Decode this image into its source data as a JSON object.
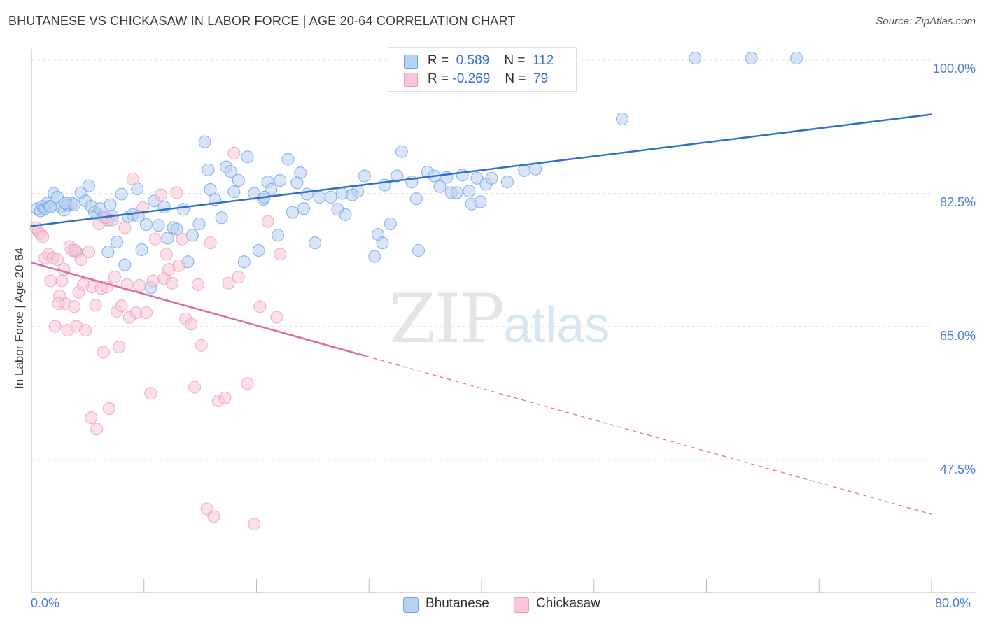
{
  "title": "BHUTANESE VS CHICKASAW IN LABOR FORCE | AGE 20-64 CORRELATION CHART",
  "source": {
    "prefix": "Source:",
    "name": "ZipAtlas.com"
  },
  "watermark": {
    "part1": "ZIP",
    "part2": "atlas"
  },
  "legend": {
    "rows": [
      {
        "r_label": "R =",
        "r_value": "0.589",
        "n_label": "N =",
        "n_value": "112"
      },
      {
        "r_label": "R =",
        "r_value": "-0.269",
        "n_label": "N =",
        "n_value": "79"
      }
    ]
  },
  "colors": {
    "blue": "#6fa3e8",
    "blue_fill": "#b8d0f4",
    "blue_line": "#2f6fce",
    "pink": "#ee9bb8",
    "pink_fill": "#f8c6d8",
    "pink_line": "#e06a96",
    "tick_text": "#4a7fd0",
    "grid": "#e3e3e3"
  },
  "chart_data": {
    "type": "scatter",
    "title": "BHUTANESE VS CHICKASAW IN LABOR FORCE | AGE 20-64 CORRELATION CHART",
    "xlabel": "",
    "ylabel": "In Labor Force | Age 20-64",
    "xlim": [
      0,
      80
    ],
    "ylim": [
      30,
      101.5
    ],
    "x_tick_labels": [
      "0.0%",
      "80.0%"
    ],
    "y_ticks": [
      47.5,
      65.0,
      82.5,
      100.0
    ],
    "y_tick_labels": [
      "47.5%",
      "65.0%",
      "82.5%",
      "100.0%"
    ],
    "grid": true,
    "legend_position": "top-center",
    "series": [
      {
        "name": "Bhutanese",
        "r": 0.589,
        "n": 112,
        "trend": {
          "x": [
            0,
            80
          ],
          "y": [
            78.2,
            92.9
          ],
          "dashed_from": null
        },
        "points": [
          [
            0.5,
            80.5
          ],
          [
            0.8,
            80.2
          ],
          [
            1.0,
            80.8
          ],
          [
            1.2,
            80.5
          ],
          [
            1.4,
            81.2
          ],
          [
            1.6,
            80.8
          ],
          [
            2.0,
            82.5
          ],
          [
            2.3,
            82.0
          ],
          [
            2.6,
            80.7
          ],
          [
            2.9,
            80.3
          ],
          [
            3.2,
            81.0
          ],
          [
            3.6,
            81.2
          ],
          [
            3.8,
            81.0
          ],
          [
            4.0,
            74.8
          ],
          [
            4.4,
            82.6
          ],
          [
            4.8,
            81.5
          ],
          [
            5.1,
            83.5
          ],
          [
            5.3,
            80.8
          ],
          [
            5.6,
            80.0
          ],
          [
            5.9,
            79.8
          ],
          [
            6.1,
            80.5
          ],
          [
            6.4,
            79.4
          ],
          [
            6.8,
            74.8
          ],
          [
            7.0,
            81.0
          ],
          [
            7.2,
            79.5
          ],
          [
            7.6,
            76.1
          ],
          [
            8.0,
            82.4
          ],
          [
            8.3,
            73.1
          ],
          [
            8.6,
            79.4
          ],
          [
            9.0,
            79.7
          ],
          [
            9.4,
            83.1
          ],
          [
            9.8,
            75.1
          ],
          [
            10.2,
            78.4
          ],
          [
            10.6,
            70.1
          ],
          [
            10.9,
            81.5
          ],
          [
            11.3,
            78.3
          ],
          [
            11.8,
            80.7
          ],
          [
            12.1,
            76.6
          ],
          [
            12.6,
            78.0
          ],
          [
            12.9,
            77.8
          ],
          [
            13.5,
            80.4
          ],
          [
            13.9,
            73.5
          ],
          [
            14.3,
            77.0
          ],
          [
            14.9,
            78.5
          ],
          [
            15.4,
            89.3
          ],
          [
            15.7,
            85.6
          ],
          [
            15.9,
            83.0
          ],
          [
            16.3,
            81.7
          ],
          [
            16.9,
            79.3
          ],
          [
            17.3,
            86.0
          ],
          [
            17.7,
            85.4
          ],
          [
            18.0,
            82.7
          ],
          [
            18.4,
            84.2
          ],
          [
            18.9,
            73.5
          ],
          [
            19.2,
            87.3
          ],
          [
            19.8,
            82.5
          ],
          [
            20.2,
            75.0
          ],
          [
            20.6,
            81.7
          ],
          [
            21.0,
            84.0
          ],
          [
            21.3,
            83.0
          ],
          [
            21.9,
            77.0
          ],
          [
            22.1,
            84.2
          ],
          [
            22.8,
            87.0
          ],
          [
            23.2,
            80.0
          ],
          [
            23.6,
            83.9
          ],
          [
            23.9,
            85.2
          ],
          [
            24.2,
            80.5
          ],
          [
            24.5,
            82.4
          ],
          [
            25.2,
            76.0
          ],
          [
            25.6,
            82.0
          ],
          [
            26.6,
            82.0
          ],
          [
            27.2,
            80.4
          ],
          [
            27.6,
            82.5
          ],
          [
            27.9,
            79.7
          ],
          [
            29.0,
            82.8
          ],
          [
            29.6,
            84.8
          ],
          [
            30.5,
            74.2
          ],
          [
            30.8,
            77.1
          ],
          [
            31.2,
            76.0
          ],
          [
            31.4,
            83.6
          ],
          [
            31.9,
            78.5
          ],
          [
            32.5,
            84.8
          ],
          [
            32.9,
            88.0
          ],
          [
            33.8,
            84.0
          ],
          [
            34.2,
            81.8
          ],
          [
            34.4,
            75.0
          ],
          [
            35.2,
            85.3
          ],
          [
            35.8,
            84.8
          ],
          [
            36.3,
            83.4
          ],
          [
            36.9,
            84.6
          ],
          [
            37.3,
            82.6
          ],
          [
            37.8,
            82.6
          ],
          [
            38.3,
            84.9
          ],
          [
            38.9,
            82.8
          ],
          [
            39.1,
            81.1
          ],
          [
            39.6,
            84.5
          ],
          [
            39.9,
            81.4
          ],
          [
            40.4,
            83.7
          ],
          [
            40.9,
            84.5
          ],
          [
            42.3,
            84.0
          ],
          [
            43.8,
            85.5
          ],
          [
            44.8,
            85.7
          ],
          [
            52.5,
            92.3
          ],
          [
            59.0,
            100.3
          ],
          [
            64.0,
            100.3
          ],
          [
            68.0,
            100.3
          ],
          [
            1.7,
            80.7
          ],
          [
            3.0,
            81.2
          ],
          [
            6.8,
            79.0
          ],
          [
            9.5,
            79.5
          ],
          [
            20.7,
            82.0
          ],
          [
            28.5,
            82.3
          ]
        ]
      },
      {
        "name": "Chickasaw",
        "r": -0.269,
        "n": 79,
        "trend": {
          "x": [
            0,
            80
          ],
          "y": [
            73.4,
            40.3
          ],
          "dashed_from": 29.7
        },
        "points": [
          [
            0.4,
            78.0
          ],
          [
            0.6,
            77.5
          ],
          [
            0.8,
            77.2
          ],
          [
            1.0,
            76.8
          ],
          [
            1.2,
            74.0
          ],
          [
            1.5,
            74.5
          ],
          [
            1.7,
            71.0
          ],
          [
            1.9,
            74.0
          ],
          [
            2.1,
            65.0
          ],
          [
            2.3,
            73.8
          ],
          [
            2.5,
            69.0
          ],
          [
            2.7,
            71.0
          ],
          [
            2.9,
            72.5
          ],
          [
            3.0,
            68.0
          ],
          [
            3.2,
            64.5
          ],
          [
            3.4,
            75.5
          ],
          [
            3.6,
            75.0
          ],
          [
            3.8,
            67.6
          ],
          [
            4.0,
            65.0
          ],
          [
            4.2,
            69.5
          ],
          [
            4.4,
            73.8
          ],
          [
            4.6,
            70.5
          ],
          [
            4.8,
            64.5
          ],
          [
            5.1,
            74.8
          ],
          [
            5.4,
            70.2
          ],
          [
            5.7,
            67.8
          ],
          [
            6.0,
            78.5
          ],
          [
            6.2,
            70.0
          ],
          [
            6.4,
            61.6
          ],
          [
            6.7,
            70.2
          ],
          [
            6.9,
            54.2
          ],
          [
            7.2,
            79.0
          ],
          [
            7.4,
            71.5
          ],
          [
            7.6,
            67.0
          ],
          [
            7.8,
            62.3
          ],
          [
            8.0,
            67.7
          ],
          [
            8.3,
            78.0
          ],
          [
            8.7,
            66.2
          ],
          [
            9.0,
            84.4
          ],
          [
            9.3,
            66.8
          ],
          [
            9.6,
            70.4
          ],
          [
            9.9,
            80.6
          ],
          [
            10.2,
            66.8
          ],
          [
            10.6,
            56.2
          ],
          [
            11.0,
            76.5
          ],
          [
            11.5,
            82.3
          ],
          [
            11.8,
            71.3
          ],
          [
            12.0,
            74.5
          ],
          [
            12.2,
            72.5
          ],
          [
            12.5,
            70.7
          ],
          [
            12.9,
            82.6
          ],
          [
            13.1,
            73.0
          ],
          [
            13.4,
            76.5
          ],
          [
            13.7,
            66.0
          ],
          [
            14.2,
            65.3
          ],
          [
            14.5,
            57.0
          ],
          [
            14.8,
            70.5
          ],
          [
            15.1,
            62.5
          ],
          [
            15.6,
            41.0
          ],
          [
            15.9,
            76.0
          ],
          [
            16.2,
            40.0
          ],
          [
            16.6,
            55.2
          ],
          [
            17.2,
            55.6
          ],
          [
            17.5,
            70.7
          ],
          [
            18.0,
            87.8
          ],
          [
            18.4,
            71.5
          ],
          [
            19.2,
            57.5
          ],
          [
            19.8,
            39.0
          ],
          [
            20.3,
            67.6
          ],
          [
            21.0,
            78.8
          ],
          [
            21.8,
            66.2
          ],
          [
            22.1,
            74.5
          ],
          [
            5.3,
            53.0
          ],
          [
            5.8,
            51.5
          ],
          [
            3.9,
            75.0
          ],
          [
            2.4,
            68.0
          ],
          [
            8.5,
            70.5
          ],
          [
            10.8,
            71.0
          ],
          [
            6.6,
            79.3
          ]
        ]
      }
    ]
  }
}
